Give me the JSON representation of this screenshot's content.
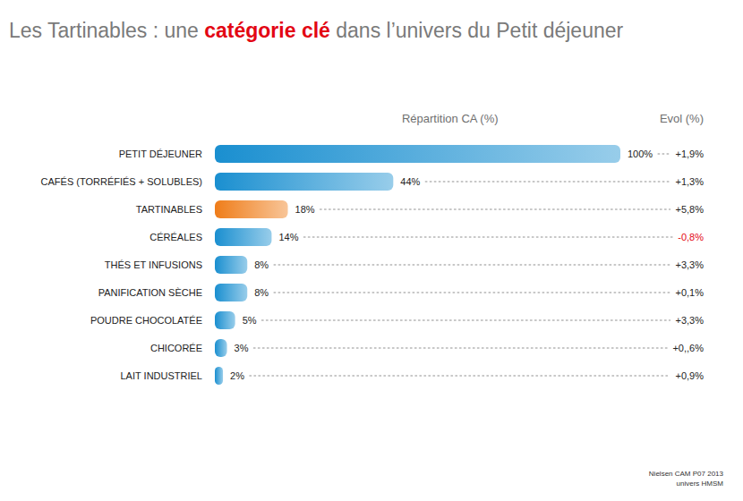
{
  "chart_data": {
    "type": "bar",
    "orientation": "horizontal",
    "title": [
      "Les Tartinables : une ",
      "catégorie clé",
      " dans l’univers du Petit déjeuner"
    ],
    "xlabel": "Répartition CA (%)",
    "evolution_label": "Evol (%)",
    "categories": [
      "PETIT DÉJEUNER",
      "CAFÉS (TORRÉFIÉS + SOLUBLES)",
      "TARTINABLES",
      "CÉRÉALES",
      "THÉS ET INFUSIONS",
      "PANIFICATION SÈCHE",
      "POUDRE CHOCOLATÉE",
      "CHICORÉE",
      "LAIT INDUSTRIEL"
    ],
    "values": [
      100,
      44,
      18,
      14,
      8,
      8,
      5,
      3,
      2
    ],
    "value_labels": [
      "100%",
      "44%",
      "18%",
      "14%",
      "8%",
      "8%",
      "5%",
      "3%",
      "2%"
    ],
    "evolution": [
      1.9,
      1.3,
      5.8,
      -0.8,
      3.3,
      0.1,
      3.3,
      0.6,
      0.9
    ],
    "evolution_labels": [
      "+1,9%",
      "+1,3%",
      "+5,8%",
      "-0,8%",
      "+3,3%",
      "+0,1%",
      "+3,3%",
      "+0,,6%",
      "+0,9%"
    ],
    "colors": [
      "#1a8fd0",
      "#1a8fd0",
      "#ef7d1a",
      "#1a8fd0",
      "#1a8fd0",
      "#1a8fd0",
      "#1a8fd0",
      "#1a8fd0",
      "#1a8fd0"
    ],
    "xlim": [
      0,
      100
    ],
    "tick_labels": false,
    "grid": false,
    "data_labels": true,
    "annotations": [
      "Nielsen CAM P07 2013",
      "univers HMSM"
    ]
  }
}
